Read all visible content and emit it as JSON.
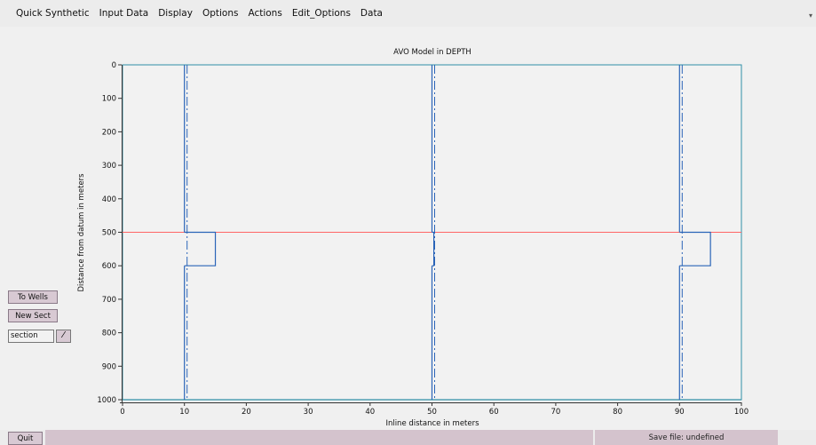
{
  "menu": {
    "items": [
      {
        "label": "Quick Synthetic"
      },
      {
        "label": "Input Data"
      },
      {
        "label": "Display"
      },
      {
        "label": "Options"
      },
      {
        "label": "Actions"
      },
      {
        "label": "Edit_Options"
      },
      {
        "label": "Data"
      }
    ]
  },
  "side_controls": {
    "to_wells_label": "To Wells",
    "new_sect_label": "New Sect",
    "select_value": "section"
  },
  "bottom": {
    "quit_label": "Quit",
    "save_file_text": "Save file: undefined"
  },
  "chart_data": {
    "type": "line",
    "title": "AVO Model in DEPTH",
    "xlabel": "Inline distance in meters",
    "ylabel": "Distance from datum in meters",
    "xlim": [
      0,
      100
    ],
    "ylim": [
      0,
      1000
    ],
    "y_inverted": true,
    "x_ticks": [
      0,
      10,
      20,
      30,
      40,
      50,
      60,
      70,
      80,
      90,
      100
    ],
    "y_ticks": [
      0,
      100,
      200,
      300,
      400,
      500,
      600,
      700,
      800,
      900,
      1000
    ],
    "horizon_depth": 500,
    "horizon_color": "#ff6666",
    "log_color": "#2a64b8",
    "frame_color": "#2f8fa7",
    "wells": [
      {
        "x": 10,
        "anomaly_top": 500,
        "anomaly_base": 600,
        "anomaly_x": 15
      },
      {
        "x": 50,
        "anomaly_top": 500,
        "anomaly_base": 600,
        "anomaly_x": 50.3
      },
      {
        "x": 90,
        "anomaly_top": 500,
        "anomaly_base": 600,
        "anomaly_x": 95
      }
    ]
  }
}
